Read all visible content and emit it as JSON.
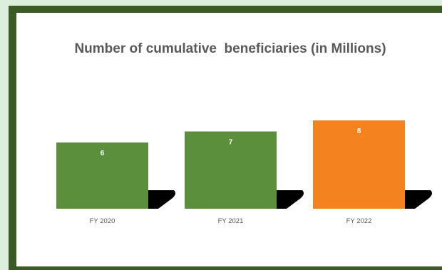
{
  "chart_data": {
    "type": "bar",
    "title": "Number of cumulative  beneficiaries (in Millions)",
    "categories": [
      "FY 2020",
      "FY 2021",
      "FY 2022"
    ],
    "values": [
      6,
      7,
      8
    ],
    "xlabel": "",
    "ylabel": "",
    "ylim": [
      0,
      8
    ],
    "grid": false,
    "legend": "none",
    "colors": {
      "bar_default": "#5c8f3c",
      "bar_highlight": "#f4821f",
      "bar_shadow": "#000000",
      "data_label": "#ffffff",
      "tick_label": "#595959",
      "title": "#595959",
      "frame": "#3b5b25",
      "background": "#dcefdc"
    },
    "highlight_index": 2
  }
}
